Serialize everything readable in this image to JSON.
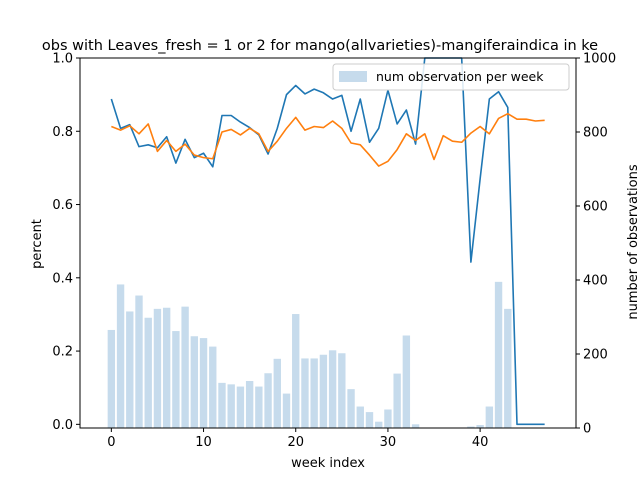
{
  "chart_data": {
    "type": "bar+line",
    "title": "obs with Leaves_fresh = 1 or 2 for mango(allvarieties)-mangiferaindica in ke",
    "xlabel": "week index",
    "ylabel": "percent",
    "y2label": "number of observations",
    "xlim": [
      -3.4,
      50.4
    ],
    "ylim": [
      -0.01,
      1.0
    ],
    "y2lim": [
      0,
      1000
    ],
    "x_ticks": [
      0,
      10,
      20,
      30,
      40
    ],
    "y_ticks": [
      0.0,
      0.2,
      0.4,
      0.6,
      0.8,
      1.0
    ],
    "y2_ticks": [
      0,
      200,
      400,
      600,
      800,
      1000
    ],
    "legend": {
      "placement": "top-right",
      "entries": [
        "num observation per week"
      ]
    },
    "grid": false,
    "x": [
      0,
      1,
      2,
      3,
      4,
      5,
      6,
      7,
      8,
      9,
      10,
      11,
      12,
      13,
      14,
      15,
      16,
      17,
      18,
      19,
      20,
      21,
      22,
      23,
      24,
      25,
      26,
      27,
      28,
      29,
      30,
      31,
      32,
      33,
      34,
      35,
      36,
      37,
      38,
      39,
      40,
      41,
      42,
      43,
      44,
      45,
      46,
      47
    ],
    "bars": {
      "name": "num observation per week",
      "color": "#c6dbec",
      "values": [
        265,
        388,
        315,
        358,
        298,
        322,
        325,
        262,
        328,
        248,
        243,
        220,
        122,
        118,
        112,
        127,
        112,
        148,
        187,
        93,
        308,
        188,
        188,
        198,
        210,
        202,
        105,
        58,
        43,
        17,
        50,
        147,
        250,
        10,
        0,
        0,
        0,
        0,
        0,
        4,
        8,
        58,
        395,
        322,
        0,
        0,
        0,
        0
      ]
    },
    "series": [
      {
        "color": "#1f77b4",
        "values": [
          0.888,
          0.808,
          0.818,
          0.758,
          0.763,
          0.755,
          0.785,
          0.713,
          0.778,
          0.728,
          0.74,
          0.703,
          0.843,
          0.843,
          0.825,
          0.81,
          0.79,
          0.738,
          0.808,
          0.9,
          0.925,
          0.902,
          0.915,
          0.905,
          0.888,
          0.898,
          0.8,
          0.888,
          0.77,
          0.808,
          0.912,
          0.82,
          0.858,
          0.765,
          1.0,
          1.0,
          1.0,
          1.0,
          1.0,
          0.443,
          0.67,
          0.888,
          0.908,
          0.865,
          0.0,
          0.0,
          0.0,
          0.0
        ]
      },
      {
        "color": "#ff7f0e",
        "values": [
          0.813,
          0.803,
          0.815,
          0.793,
          0.82,
          0.745,
          0.775,
          0.745,
          0.765,
          0.735,
          0.728,
          0.725,
          0.798,
          0.805,
          0.79,
          0.808,
          0.793,
          0.745,
          0.773,
          0.808,
          0.838,
          0.803,
          0.813,
          0.81,
          0.828,
          0.808,
          0.768,
          0.763,
          0.735,
          0.705,
          0.718,
          0.75,
          0.793,
          0.775,
          0.793,
          0.723,
          0.788,
          0.773,
          0.77,
          0.795,
          0.813,
          0.793,
          0.835,
          0.848,
          0.833,
          0.833,
          0.828,
          0.83
        ]
      }
    ]
  }
}
